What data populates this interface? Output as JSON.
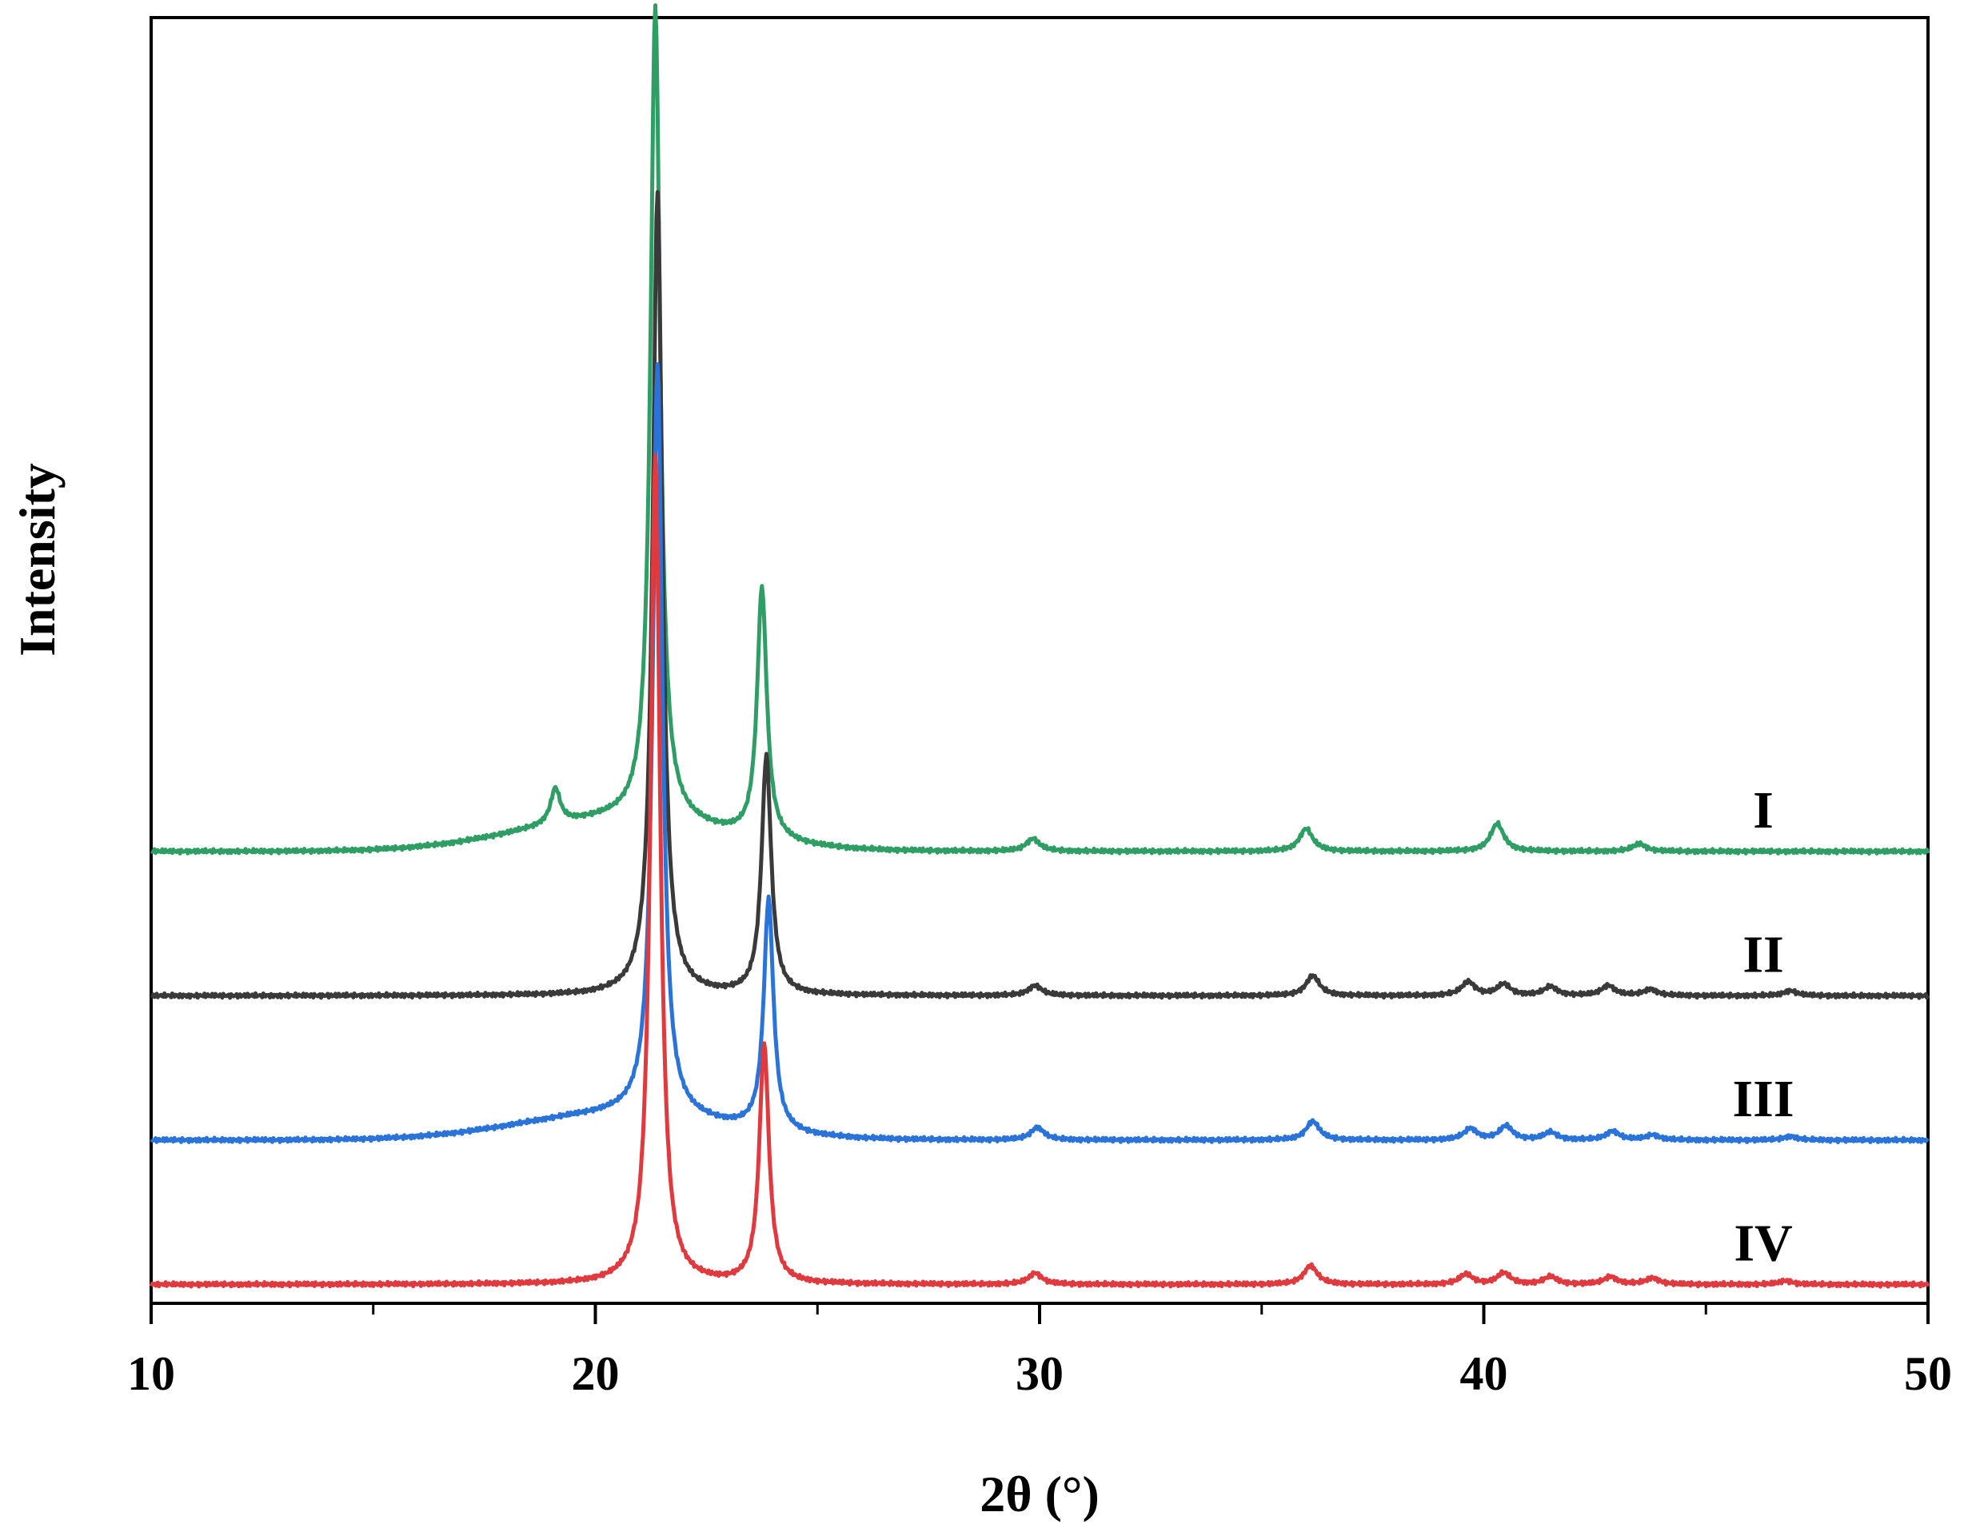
{
  "chart_data": {
    "type": "line",
    "xlabel": "2θ (°)",
    "ylabel": "Intensity",
    "xlim": [
      10,
      50
    ],
    "x_ticks": [
      10,
      20,
      30,
      40,
      50
    ],
    "x_minor_ticks": [
      15,
      25,
      35,
      45
    ],
    "ylim": [
      0,
      100
    ],
    "y_ticks_shown": false,
    "grid": false,
    "legend": "none (series labeled at right end of each trace)",
    "series": [
      {
        "name": "I",
        "color": "#2e9e64",
        "baseline": 36,
        "wide_hump": 2.5,
        "peaks": [
          [
            19.1,
            2.8
          ],
          [
            21.35,
            65.0
          ],
          [
            23.75,
            20.0
          ],
          [
            29.85,
            1.0
          ],
          [
            36.0,
            1.8
          ],
          [
            40.3,
            2.2
          ],
          [
            43.5,
            0.6
          ]
        ]
      },
      {
        "name": "II",
        "color": "#3a3a3a",
        "baseline": 24.5,
        "wide_hump": 0,
        "peaks": [
          [
            21.4,
            64.0
          ],
          [
            23.85,
            19.0
          ],
          [
            29.9,
            0.8
          ],
          [
            36.15,
            1.6
          ],
          [
            39.65,
            1.1
          ],
          [
            40.45,
            0.9
          ],
          [
            41.5,
            0.7
          ],
          [
            42.8,
            0.8
          ],
          [
            43.75,
            0.5
          ],
          [
            46.9,
            0.4
          ]
        ]
      },
      {
        "name": "III",
        "color": "#2a73d8",
        "baseline": 13,
        "wide_hump": 2.0,
        "peaks": [
          [
            21.4,
            60.0
          ],
          [
            23.9,
            18.5
          ],
          [
            29.95,
            1.0
          ],
          [
            36.15,
            1.5
          ],
          [
            39.7,
            0.9
          ],
          [
            40.5,
            1.1
          ],
          [
            41.5,
            0.6
          ],
          [
            42.9,
            0.7
          ],
          [
            43.8,
            0.4
          ],
          [
            46.9,
            0.3
          ]
        ]
      },
      {
        "name": "IV",
        "color": "#e0393e",
        "baseline": 1.5,
        "wide_hump": 0,
        "peaks": [
          [
            21.35,
            66.0
          ],
          [
            23.8,
            19.0
          ],
          [
            29.9,
            0.9
          ],
          [
            36.1,
            1.5
          ],
          [
            39.6,
            0.8
          ],
          [
            40.45,
            0.9
          ],
          [
            41.5,
            0.6
          ],
          [
            42.85,
            0.6
          ],
          [
            43.8,
            0.5
          ],
          [
            46.8,
            0.3
          ]
        ]
      }
    ]
  }
}
